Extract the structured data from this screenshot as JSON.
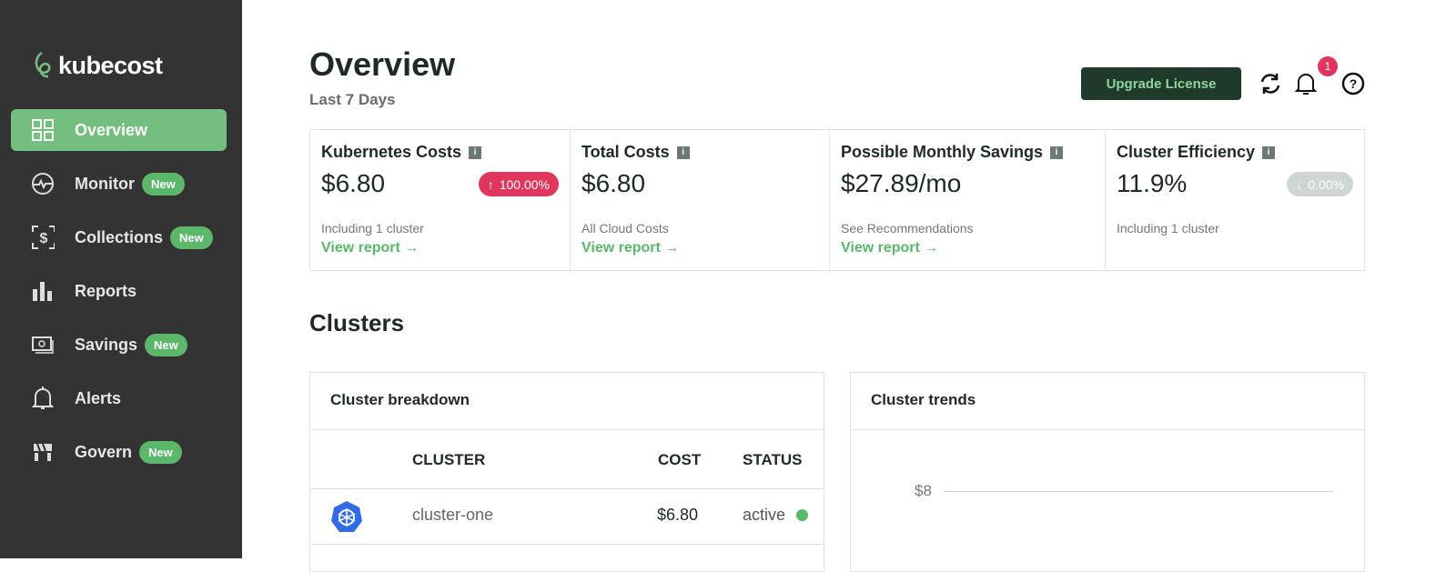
{
  "brand": {
    "name": "kubecost",
    "accent": "#74bf7f"
  },
  "sidebar": {
    "items": [
      {
        "label": "Overview",
        "icon": "grid-icon",
        "active": true
      },
      {
        "label": "Monitor",
        "icon": "pulse-icon",
        "badge": "New"
      },
      {
        "label": "Collections",
        "icon": "dollar-frame-icon",
        "badge": "New"
      },
      {
        "label": "Reports",
        "icon": "bar-chart-icon"
      },
      {
        "label": "Savings",
        "icon": "money-icon",
        "badge": "New"
      },
      {
        "label": "Alerts",
        "icon": "bell-icon"
      },
      {
        "label": "Govern",
        "icon": "govern-icon",
        "badge": "New"
      }
    ]
  },
  "header": {
    "title": "Overview",
    "subtitle": "Last 7 Days",
    "upgrade_label": "Upgrade License",
    "notification_count": "1"
  },
  "cards": [
    {
      "title": "Kubernetes Costs",
      "value": "$6.80",
      "change": "100.00%",
      "change_dir": "up",
      "change_color": "#e0365d",
      "subtext": "Including 1 cluster",
      "link": "View report"
    },
    {
      "title": "Total Costs",
      "value": "$6.80",
      "subtext": "All Cloud Costs",
      "link": "View report"
    },
    {
      "title": "Possible Monthly Savings",
      "value": "$27.89/mo",
      "subtext": "See Recommendations",
      "link": "View report"
    },
    {
      "title": "Cluster Efficiency",
      "value": "11.9%",
      "change": "0.00%",
      "change_dir": "down",
      "change_color": "#cfd6d2",
      "subtext": "Including 1 cluster"
    }
  ],
  "clusters": {
    "title": "Clusters",
    "breakdown": {
      "title": "Cluster breakdown",
      "columns": [
        "CLUSTER",
        "COST",
        "STATUS"
      ],
      "rows": [
        {
          "name": "cluster-one",
          "cost": "$6.80",
          "status": "active"
        }
      ]
    },
    "trends": {
      "title": "Cluster trends",
      "y_tick": "$8"
    }
  }
}
